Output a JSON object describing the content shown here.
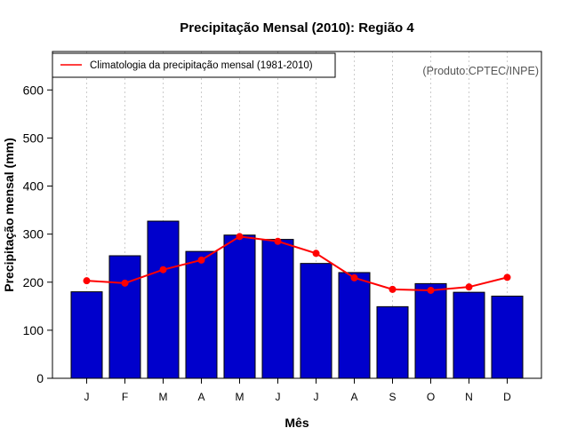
{
  "chart_data": {
    "type": "bar",
    "title": "Precipitação Mensal (2010): Região 4",
    "xlabel": "Mês",
    "ylabel": "Precipitação mensal (mm)",
    "ylim": [
      0,
      680
    ],
    "yticks": [
      0,
      100,
      200,
      300,
      400,
      500,
      600
    ],
    "categories": [
      "J",
      "F",
      "M",
      "A",
      "M",
      "J",
      "J",
      "A",
      "S",
      "O",
      "N",
      "D"
    ],
    "series": [
      {
        "name": "Precipitação mensal 2010",
        "type": "bar",
        "color": "#0000cc",
        "values": [
          180,
          255,
          327,
          264,
          298,
          289,
          239,
          220,
          149,
          197,
          179,
          171
        ]
      },
      {
        "name": "Climatologia da precipitação mensal (1981-2010)",
        "type": "line",
        "color": "#ff0000",
        "values": [
          203,
          198,
          226,
          246,
          295,
          285,
          260,
          209,
          185,
          183,
          190,
          210
        ]
      }
    ],
    "legend": {
      "position": "top-left",
      "entries": [
        "Climatologia da precipitação mensal (1981-2010)"
      ]
    },
    "annotation": "(Produto:CPTEC/INPE)",
    "grid": "vertical-dotted"
  }
}
